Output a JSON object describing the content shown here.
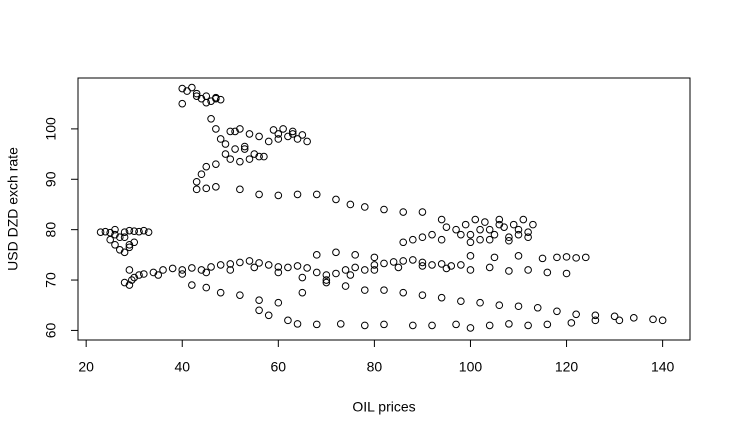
{
  "chart_data": {
    "type": "scatter",
    "x_label": "OIL prices",
    "y_label": "USD DZD exch rate",
    "xlim": [
      18.3,
      145.7
    ],
    "ylim": [
      58.1,
      110.1
    ],
    "xticks": [
      20,
      40,
      60,
      80,
      100,
      120,
      140
    ],
    "yticks": [
      60,
      70,
      80,
      90,
      100
    ],
    "color": "#000000",
    "x": [
      23,
      24,
      25,
      26,
      27,
      28,
      29,
      30,
      31,
      32,
      33,
      26,
      27,
      28,
      29,
      25,
      26,
      28,
      29,
      30,
      28,
      29,
      29.5,
      30,
      31,
      29,
      32,
      34,
      36,
      38,
      40,
      42,
      44,
      46,
      48,
      50,
      52,
      54,
      56,
      58,
      60,
      62,
      64,
      66,
      68,
      70,
      72,
      74,
      76,
      78,
      80,
      82,
      84,
      86,
      88,
      90,
      92,
      94,
      96,
      98,
      35,
      40,
      45,
      50,
      55,
      60,
      65,
      70,
      75,
      80,
      85,
      90,
      95,
      68,
      72,
      76,
      80,
      100,
      105,
      110,
      115,
      118,
      120,
      122,
      124,
      100,
      104,
      108,
      112,
      116,
      120,
      95,
      97,
      99,
      100,
      101,
      102,
      103,
      104,
      105,
      106,
      107,
      108,
      109,
      110,
      111,
      112,
      113,
      100,
      104,
      108,
      112,
      98,
      102,
      106,
      110,
      86,
      88,
      90,
      92,
      94,
      42,
      45,
      48,
      52,
      56,
      60,
      65,
      70,
      74,
      78,
      82,
      86,
      90,
      94,
      98,
      102,
      106,
      110,
      114,
      118,
      122,
      126,
      130,
      134,
      138,
      140,
      56,
      58,
      62,
      64,
      68,
      73,
      78,
      82,
      88,
      92,
      97,
      100,
      104,
      108,
      112,
      116,
      121,
      126,
      131,
      43,
      45,
      47,
      52,
      56,
      60,
      64,
      68,
      72,
      75,
      78,
      82,
      86,
      90,
      94,
      40,
      41,
      42,
      43,
      44,
      45,
      46,
      47,
      48,
      40,
      43,
      45,
      47,
      46,
      47,
      48,
      50,
      52,
      54,
      56,
      58,
      53,
      55,
      57,
      49,
      51,
      59,
      60,
      61,
      62,
      63,
      64,
      65,
      66,
      60,
      63,
      43,
      44,
      45,
      47,
      49,
      50,
      51,
      52,
      53,
      54,
      56
    ],
    "values": [
      79.5,
      79.6,
      79.4,
      79,
      78.5,
      79.5,
      79.8,
      79.7,
      79.6,
      79.8,
      79.5,
      77,
      76,
      75.5,
      77,
      78,
      80,
      78.5,
      76.5,
      77.5,
      69.5,
      69,
      70,
      70.5,
      71,
      72,
      71.2,
      71.5,
      72,
      72.3,
      72,
      72.4,
      72,
      72.6,
      73,
      73.2,
      73.5,
      73.8,
      73.4,
      73,
      72.6,
      72.5,
      72.8,
      72.4,
      71.5,
      71,
      71.3,
      72,
      72.5,
      72,
      73,
      73.3,
      73.6,
      73.8,
      74,
      73.5,
      73,
      73.2,
      72.8,
      73,
      71,
      71.2,
      71.5,
      72,
      72.5,
      71.5,
      70.5,
      70,
      71,
      72,
      72.5,
      72.8,
      72.3,
      75,
      75.5,
      75,
      74.5,
      74.8,
      74.5,
      74.8,
      74.3,
      74.5,
      74.6,
      74.4,
      74.5,
      72,
      72.5,
      71.8,
      72,
      71.5,
      71.3,
      80.5,
      80,
      81,
      79,
      82,
      78,
      81.5,
      80,
      79,
      82,
      80.5,
      78.5,
      81,
      80,
      82,
      79.5,
      81,
      77.5,
      78,
      77.8,
      78.5,
      79,
      80,
      81,
      79,
      77.5,
      78,
      78.5,
      79,
      78,
      69,
      68.5,
      67.5,
      67,
      66,
      65.5,
      67.5,
      69.5,
      68.8,
      68,
      68,
      67.5,
      67,
      66.5,
      65.8,
      65.5,
      65,
      64.8,
      64.5,
      63.8,
      63.2,
      63,
      62.8,
      62.5,
      62.2,
      62,
      64,
      63,
      62,
      61.3,
      61.2,
      61.3,
      61,
      61.2,
      61,
      61,
      61.2,
      60.5,
      61,
      61.3,
      61,
      61.2,
      61.5,
      62,
      62,
      88,
      88.2,
      88.5,
      88,
      87,
      86.8,
      87,
      87,
      86,
      85,
      84.5,
      84,
      83.5,
      83.5,
      82,
      108,
      107.5,
      108.2,
      107,
      106,
      106.5,
      105.5,
      106,
      105.8,
      105,
      106.5,
      105.2,
      106.2,
      102,
      100,
      98,
      99.5,
      100,
      99,
      98.5,
      97.5,
      96,
      95,
      94.5,
      97,
      99.5,
      99.8,
      99,
      100,
      98.5,
      99.5,
      98,
      98.8,
      97.5,
      98,
      99,
      89.5,
      91,
      92.5,
      93,
      95,
      94,
      96,
      93.5,
      96.5,
      94,
      94.5
    ]
  }
}
